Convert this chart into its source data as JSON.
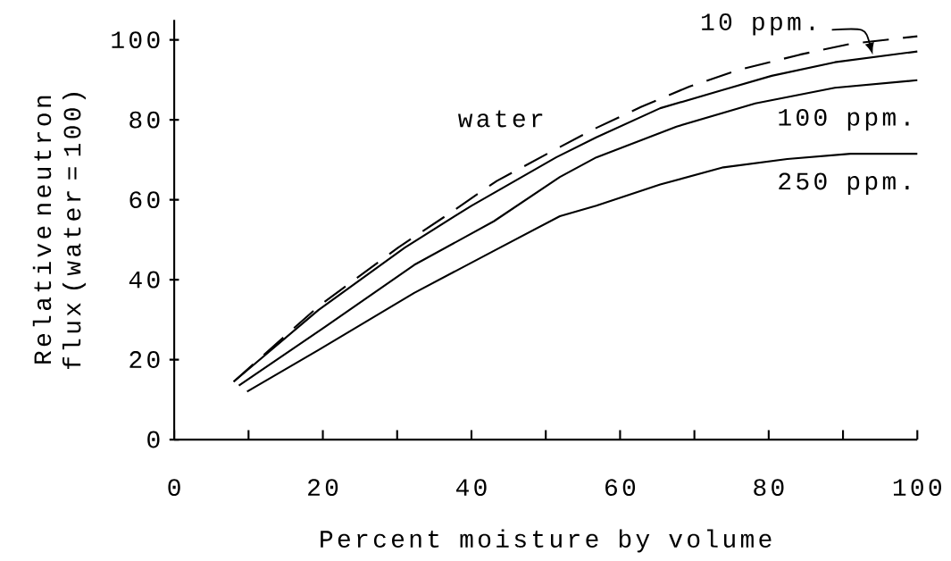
{
  "chart_data": {
    "type": "line",
    "xlabel": "Percent moisture by volume",
    "ylabel": "Relative neutron flux (water = 100)",
    "xlim": [
      0,
      100
    ],
    "ylim": [
      0,
      105
    ],
    "xticks": [
      0,
      {
        "value": 10,
        "label": null
      },
      20,
      {
        "value": 30,
        "label": null
      },
      40,
      {
        "value": 50,
        "label": null
      },
      60,
      {
        "value": 70,
        "label": null
      },
      80,
      {
        "value": 90,
        "label": null
      },
      100
    ],
    "yticks": [
      0,
      20,
      40,
      60,
      80,
      100
    ],
    "grid": false,
    "marker": "none",
    "series": [
      {
        "name": "water",
        "color": "#000000",
        "line_style": "dashed",
        "x": [
          8,
          19.4,
          30.1,
          36.5,
          43.4,
          50.2,
          56.5,
          62.8,
          69.3,
          76,
          84.2,
          91,
          100
        ],
        "values": [
          14.5,
          33.3,
          48,
          55.9,
          64.7,
          71.5,
          77.7,
          83.2,
          88.3,
          92.5,
          96.3,
          99,
          100.9
        ]
      },
      {
        "name": "10 ppm.",
        "color": "#000000",
        "line_style": "solid",
        "x": [
          8,
          19.4,
          31,
          40,
          51.4,
          56.8,
          65.4,
          73.9,
          80.4,
          88.9,
          100
        ],
        "values": [
          14.5,
          32.4,
          48,
          58.5,
          70.6,
          75.6,
          82.9,
          87.5,
          91,
          94.4,
          97.1
        ]
      },
      {
        "name": "100 ppm.",
        "color": "#000000",
        "line_style": "solid",
        "x": [
          8.7,
          20.3,
          32.3,
          43,
          51.9,
          56.8,
          67.6,
          78.2,
          88.9,
          100
        ],
        "values": [
          13.5,
          28.2,
          43.7,
          54.6,
          65.7,
          70.6,
          78.3,
          84.1,
          88,
          89.9
        ]
      },
      {
        "name": "250 ppm.",
        "color": "#000000",
        "line_style": "solid",
        "x": [
          9.8,
          19.4,
          32.3,
          43,
          51.9,
          56.8,
          65.4,
          73.9,
          82.5,
          91,
          100
        ],
        "values": [
          12,
          22.4,
          36.7,
          47.2,
          55.9,
          58.5,
          63.8,
          68.1,
          70.2,
          71.5,
          71.5
        ]
      }
    ]
  }
}
